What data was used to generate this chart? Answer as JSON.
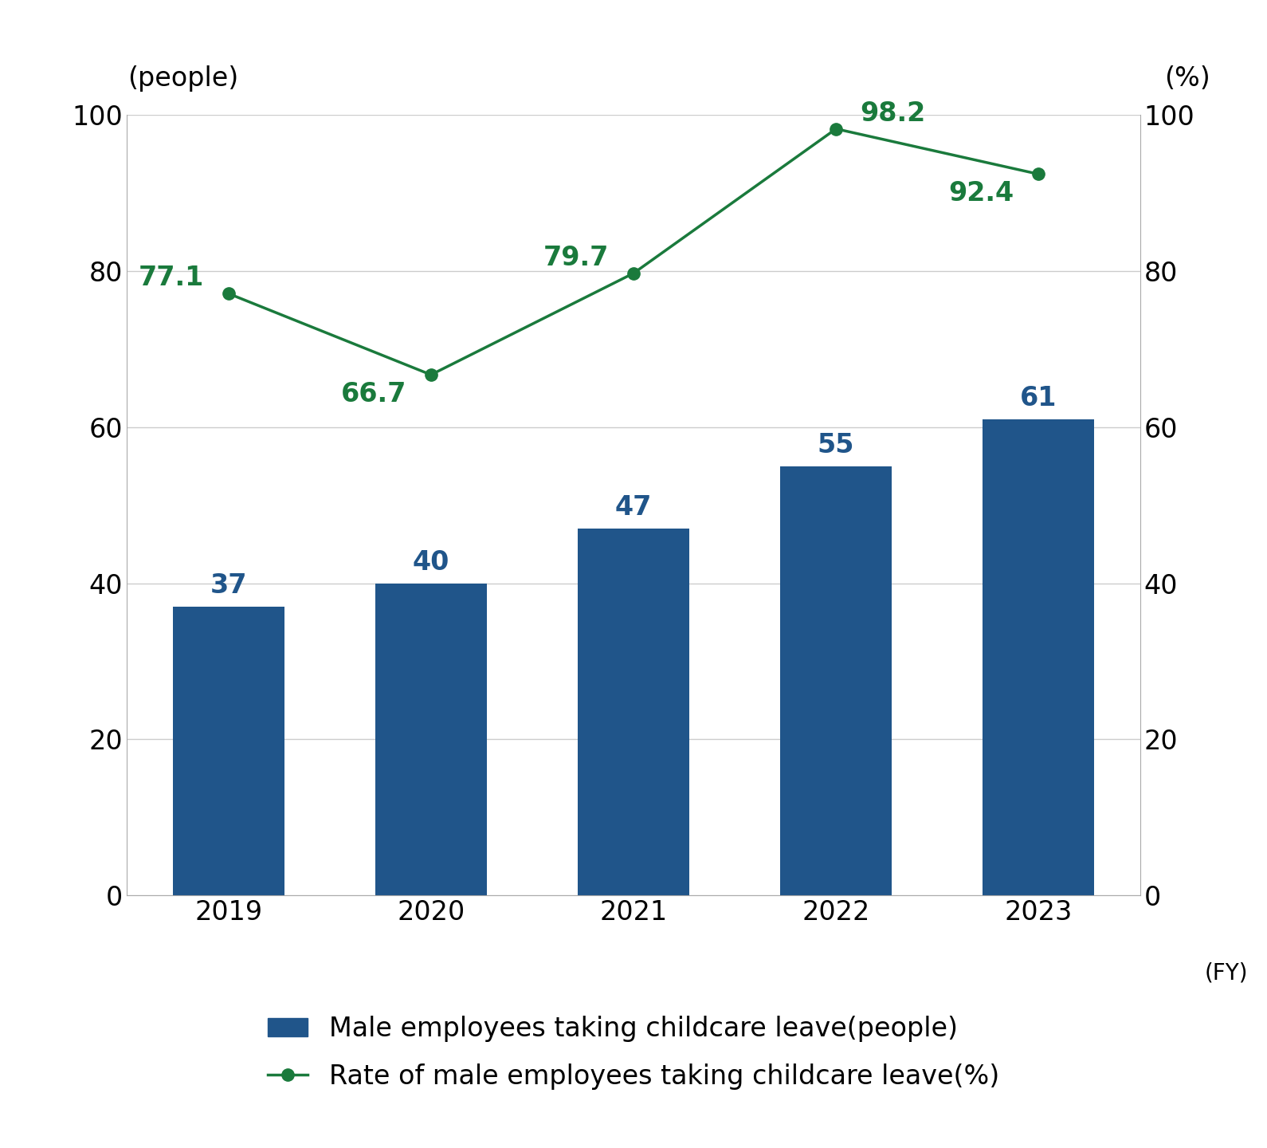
{
  "years": [
    "2019",
    "2020",
    "2021",
    "2022",
    "2023"
  ],
  "bar_values": [
    37,
    40,
    47,
    55,
    61
  ],
  "line_values": [
    77.1,
    66.7,
    79.7,
    98.2,
    92.4
  ],
  "bar_color": "#20558a",
  "line_color": "#1a7a3c",
  "bar_label_color": "#20558a",
  "line_label_color": "#1a7a3c",
  "ylabel_left": "(people)",
  "ylabel_right": "(%)",
  "xlabel_suffix": "(FY)",
  "ylim_left": [
    0,
    100
  ],
  "ylim_right": [
    0,
    100
  ],
  "yticks": [
    0,
    20,
    40,
    60,
    80,
    100
  ],
  "legend_bar": "Male employees taking childcare leave(people)",
  "legend_line": "Rate of male employees taking childcare leave(%)",
  "bar_width": 0.55,
  "fig_width": 15.9,
  "fig_height": 14.4,
  "background_color": "#ffffff",
  "grid_color": "#cccccc",
  "tick_fontsize": 24,
  "label_fontsize": 24,
  "annot_fontsize": 24
}
